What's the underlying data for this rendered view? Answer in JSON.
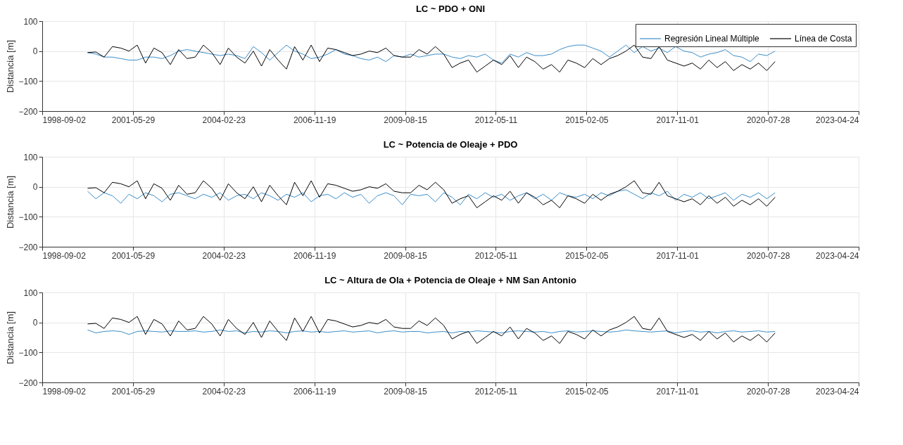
{
  "chart_data": [
    {
      "type": "line",
      "title": "LC ~ PDO + ONI",
      "ylabel": "Distancia [m]",
      "xlim": [
        "1998-09-02",
        "2023-04-24"
      ],
      "xticks": [
        "1998-09-02",
        "2001-05-29",
        "2004-02-23",
        "2006-11-19",
        "2009-08-15",
        "2012-05-11",
        "2015-02-05",
        "2017-11-01",
        "2020-07-28",
        "2023-04-24"
      ],
      "ylim": [
        -200,
        100
      ],
      "yticks": [
        -200,
        -100,
        0,
        100
      ],
      "grid": true,
      "legend": "top right",
      "x": [
        "2000-01-15",
        "2000-04-15",
        "2000-07-15",
        "2000-10-15",
        "2001-01-15",
        "2001-04-15",
        "2001-07-15",
        "2001-10-15",
        "2002-01-15",
        "2002-04-15",
        "2002-07-15",
        "2002-10-15",
        "2003-01-15",
        "2003-04-15",
        "2003-07-15",
        "2003-10-15",
        "2004-01-15",
        "2004-04-15",
        "2004-07-15",
        "2004-10-15",
        "2005-01-15",
        "2005-04-15",
        "2005-07-15",
        "2005-10-15",
        "2006-01-15",
        "2006-04-15",
        "2006-07-15",
        "2006-10-15",
        "2007-01-15",
        "2007-04-15",
        "2007-07-15",
        "2007-10-15",
        "2008-01-15",
        "2008-04-15",
        "2008-07-15",
        "2008-10-15",
        "2009-01-15",
        "2009-04-15",
        "2009-07-15",
        "2009-10-15",
        "2010-01-15",
        "2010-04-15",
        "2010-07-15",
        "2010-10-15",
        "2011-01-15",
        "2011-04-15",
        "2011-07-15",
        "2011-10-15",
        "2012-01-15",
        "2012-04-15",
        "2012-07-15",
        "2012-10-15",
        "2013-01-15",
        "2013-04-15",
        "2013-07-15",
        "2013-10-15",
        "2014-01-15",
        "2014-04-15",
        "2014-07-15",
        "2014-10-15",
        "2015-01-15",
        "2015-04-15",
        "2015-07-15",
        "2015-10-15",
        "2016-01-15",
        "2016-04-15",
        "2016-07-15",
        "2016-10-15",
        "2017-01-15",
        "2017-04-15",
        "2017-07-15",
        "2017-10-15",
        "2018-01-15",
        "2018-04-15",
        "2018-07-15",
        "2018-10-15",
        "2019-01-15",
        "2019-04-15",
        "2019-07-15",
        "2019-10-15",
        "2020-01-15",
        "2020-04-15",
        "2020-07-15",
        "2020-10-15"
      ],
      "series": [
        {
          "name": "Regresión Lineal Múltiple",
          "color": "#3a8dc9",
          "values": [
            -5,
            -10,
            -20,
            -20,
            -25,
            -30,
            -30,
            -20,
            -20,
            -25,
            -15,
            0,
            5,
            0,
            -5,
            -10,
            -15,
            -10,
            -15,
            -25,
            15,
            -5,
            -30,
            -5,
            20,
            0,
            -10,
            -25,
            -20,
            -10,
            5,
            -10,
            -15,
            -25,
            -30,
            -20,
            -35,
            -15,
            -20,
            -10,
            -20,
            -15,
            -10,
            -10,
            -20,
            -25,
            -15,
            -20,
            -10,
            -30,
            -40,
            -10,
            -20,
            -5,
            -15,
            -15,
            -10,
            5,
            15,
            20,
            20,
            10,
            0,
            -20,
            0,
            20,
            -5,
            15,
            0,
            10,
            -5,
            15,
            0,
            -5,
            -20,
            -10,
            -5,
            5,
            -15,
            -20,
            -35,
            -10,
            -15,
            0
          ]
        },
        {
          "name": "Línea de Costa",
          "color": "#000000",
          "values": [
            -5,
            -3,
            -20,
            15,
            10,
            0,
            20,
            -40,
            10,
            -5,
            -45,
            5,
            -25,
            -20,
            20,
            -5,
            -45,
            10,
            -20,
            -40,
            0,
            -50,
            5,
            -30,
            -60,
            15,
            -30,
            20,
            -35,
            10,
            5,
            -5,
            -15,
            -10,
            0,
            -5,
            10,
            -15,
            -20,
            -20,
            5,
            -10,
            15,
            -10,
            -55,
            -40,
            -30,
            -70,
            -50,
            -30,
            -45,
            -15,
            -55,
            -20,
            -35,
            -60,
            -45,
            -70,
            -30,
            -40,
            -55,
            -25,
            -45,
            -25,
            -15,
            0,
            20,
            -20,
            -25,
            15,
            -30,
            -40,
            -50,
            -40,
            -60,
            -30,
            -55,
            -35,
            -65,
            -45,
            -60,
            -40,
            -65,
            -35
          ]
        }
      ]
    },
    {
      "type": "line",
      "title": "LC ~ Potencia de Oleaje + PDO",
      "ylabel": "Distancia [m]",
      "xlim": [
        "1998-09-02",
        "2023-04-24"
      ],
      "xticks": [
        "1998-09-02",
        "2001-05-29",
        "2004-02-23",
        "2006-11-19",
        "2009-08-15",
        "2012-05-11",
        "2015-02-05",
        "2017-11-01",
        "2020-07-28",
        "2023-04-24"
      ],
      "ylim": [
        -200,
        100
      ],
      "yticks": [
        -200,
        -100,
        0,
        100
      ],
      "grid": true,
      "x": [
        "2000-01-15",
        "2000-04-15",
        "2000-07-15",
        "2000-10-15",
        "2001-01-15",
        "2001-04-15",
        "2001-07-15",
        "2001-10-15",
        "2002-01-15",
        "2002-04-15",
        "2002-07-15",
        "2002-10-15",
        "2003-01-15",
        "2003-04-15",
        "2003-07-15",
        "2003-10-15",
        "2004-01-15",
        "2004-04-15",
        "2004-07-15",
        "2004-10-15",
        "2005-01-15",
        "2005-04-15",
        "2005-07-15",
        "2005-10-15",
        "2006-01-15",
        "2006-04-15",
        "2006-07-15",
        "2006-10-15",
        "2007-01-15",
        "2007-04-15",
        "2007-07-15",
        "2007-10-15",
        "2008-01-15",
        "2008-04-15",
        "2008-07-15",
        "2008-10-15",
        "2009-01-15",
        "2009-04-15",
        "2009-07-15",
        "2009-10-15",
        "2010-01-15",
        "2010-04-15",
        "2010-07-15",
        "2010-10-15",
        "2011-01-15",
        "2011-04-15",
        "2011-07-15",
        "2011-10-15",
        "2012-01-15",
        "2012-04-15",
        "2012-07-15",
        "2012-10-15",
        "2013-01-15",
        "2013-04-15",
        "2013-07-15",
        "2013-10-15",
        "2014-01-15",
        "2014-04-15",
        "2014-07-15",
        "2014-10-15",
        "2015-01-15",
        "2015-04-15",
        "2015-07-15",
        "2015-10-15",
        "2016-01-15",
        "2016-04-15",
        "2016-07-15",
        "2016-10-15",
        "2017-01-15",
        "2017-04-15",
        "2017-07-15",
        "2017-10-15",
        "2018-01-15",
        "2018-04-15",
        "2018-07-15",
        "2018-10-15",
        "2019-01-15",
        "2019-04-15",
        "2019-07-15",
        "2019-10-15",
        "2020-01-15",
        "2020-04-15",
        "2020-07-15",
        "2020-10-15"
      ],
      "series": [
        {
          "color": "#3a8dc9",
          "values": [
            -15,
            -40,
            -20,
            -30,
            -55,
            -25,
            -40,
            -20,
            -30,
            -50,
            -25,
            -20,
            -30,
            -40,
            -25,
            -35,
            -20,
            -45,
            -30,
            -25,
            -40,
            -20,
            -30,
            -45,
            -25,
            -35,
            -20,
            -50,
            -30,
            -25,
            -40,
            -20,
            -35,
            -25,
            -55,
            -30,
            -20,
            -30,
            -60,
            -25,
            -30,
            -25,
            -50,
            -20,
            -35,
            -60,
            -25,
            -40,
            -20,
            -35,
            -25,
            -45,
            -30,
            -20,
            -40,
            -25,
            -45,
            -20,
            -30,
            -35,
            -25,
            -40,
            -20,
            -30,
            -15,
            -10,
            -25,
            -40,
            -20,
            -30,
            -15,
            -45,
            -25,
            -35,
            -20,
            -40,
            -30,
            -20,
            -45,
            -25,
            -35,
            -20,
            -40,
            -20
          ]
        },
        {
          "color": "#000000",
          "values": [
            -5,
            -3,
            -20,
            15,
            10,
            0,
            20,
            -40,
            10,
            -5,
            -45,
            5,
            -25,
            -20,
            20,
            -5,
            -45,
            10,
            -20,
            -40,
            0,
            -50,
            5,
            -30,
            -60,
            15,
            -30,
            20,
            -35,
            10,
            5,
            -5,
            -15,
            -10,
            0,
            -5,
            10,
            -15,
            -20,
            -20,
            5,
            -10,
            15,
            -10,
            -55,
            -40,
            -30,
            -70,
            -50,
            -30,
            -45,
            -15,
            -55,
            -20,
            -35,
            -60,
            -45,
            -70,
            -30,
            -40,
            -55,
            -25,
            -45,
            -25,
            -15,
            0,
            20,
            -20,
            -25,
            15,
            -30,
            -40,
            -50,
            -40,
            -60,
            -30,
            -55,
            -35,
            -65,
            -45,
            -60,
            -40,
            -65,
            -35
          ]
        }
      ]
    },
    {
      "type": "line",
      "title": "LC ~ Altura de Ola + Potencia de Oleaje + NM San Antonio",
      "ylabel": "Distancia [m]",
      "xlim": [
        "1998-09-02",
        "2023-04-24"
      ],
      "xticks": [
        "1998-09-02",
        "2001-05-29",
        "2004-02-23",
        "2006-11-19",
        "2009-08-15",
        "2012-05-11",
        "2015-02-05",
        "2017-11-01",
        "2020-07-28",
        "2023-04-24"
      ],
      "ylim": [
        -200,
        100
      ],
      "yticks": [
        -200,
        -100,
        0,
        100
      ],
      "grid": true,
      "x": [
        "2000-01-15",
        "2000-04-15",
        "2000-07-15",
        "2000-10-15",
        "2001-01-15",
        "2001-04-15",
        "2001-07-15",
        "2001-10-15",
        "2002-01-15",
        "2002-04-15",
        "2002-07-15",
        "2002-10-15",
        "2003-01-15",
        "2003-04-15",
        "2003-07-15",
        "2003-10-15",
        "2004-01-15",
        "2004-04-15",
        "2004-07-15",
        "2004-10-15",
        "2005-01-15",
        "2005-04-15",
        "2005-07-15",
        "2005-10-15",
        "2006-01-15",
        "2006-04-15",
        "2006-07-15",
        "2006-10-15",
        "2007-01-15",
        "2007-04-15",
        "2007-07-15",
        "2007-10-15",
        "2008-01-15",
        "2008-04-15",
        "2008-07-15",
        "2008-10-15",
        "2009-01-15",
        "2009-04-15",
        "2009-07-15",
        "2009-10-15",
        "2010-01-15",
        "2010-04-15",
        "2010-07-15",
        "2010-10-15",
        "2011-01-15",
        "2011-04-15",
        "2011-07-15",
        "2011-10-15",
        "2012-01-15",
        "2012-04-15",
        "2012-07-15",
        "2012-10-15",
        "2013-01-15",
        "2013-04-15",
        "2013-07-15",
        "2013-10-15",
        "2014-01-15",
        "2014-04-15",
        "2014-07-15",
        "2014-10-15",
        "2015-01-15",
        "2015-04-15",
        "2015-07-15",
        "2015-10-15",
        "2016-01-15",
        "2016-04-15",
        "2016-07-15",
        "2016-10-15",
        "2017-01-15",
        "2017-04-15",
        "2017-07-15",
        "2017-10-15",
        "2018-01-15",
        "2018-04-15",
        "2018-07-15",
        "2018-10-15",
        "2019-01-15",
        "2019-04-15",
        "2019-07-15",
        "2019-10-15",
        "2020-01-15",
        "2020-04-15",
        "2020-07-15",
        "2020-10-15"
      ],
      "series": [
        {
          "color": "#3a8dc9",
          "values": [
            -25,
            -35,
            -30,
            -28,
            -30,
            -40,
            -30,
            -28,
            -30,
            -32,
            -28,
            -30,
            -30,
            -28,
            -32,
            -30,
            -25,
            -30,
            -28,
            -35,
            -30,
            -32,
            -28,
            -30,
            -35,
            -30,
            -28,
            -32,
            -30,
            -33,
            -30,
            -28,
            -32,
            -30,
            -28,
            -35,
            -30,
            -28,
            -32,
            -30,
            -30,
            -35,
            -32,
            -30,
            -35,
            -30,
            -32,
            -28,
            -30,
            -32,
            -35,
            -30,
            -28,
            -30,
            -32,
            -30,
            -35,
            -30,
            -28,
            -32,
            -30,
            -28,
            -30,
            -32,
            -30,
            -25,
            -28,
            -30,
            -32,
            -30,
            -28,
            -35,
            -30,
            -28,
            -32,
            -30,
            -35,
            -30,
            -28,
            -32,
            -30,
            -28,
            -32,
            -30
          ]
        },
        {
          "color": "#000000",
          "values": [
            -5,
            -3,
            -20,
            15,
            10,
            0,
            20,
            -40,
            10,
            -5,
            -45,
            5,
            -25,
            -20,
            20,
            -5,
            -45,
            10,
            -20,
            -40,
            0,
            -50,
            5,
            -30,
            -60,
            15,
            -30,
            20,
            -35,
            10,
            5,
            -5,
            -15,
            -10,
            0,
            -5,
            10,
            -15,
            -20,
            -20,
            5,
            -10,
            15,
            -10,
            -55,
            -40,
            -30,
            -70,
            -50,
            -30,
            -45,
            -15,
            -55,
            -20,
            -35,
            -60,
            -45,
            -70,
            -30,
            -40,
            -55,
            -25,
            -45,
            -25,
            -15,
            0,
            20,
            -20,
            -25,
            15,
            -30,
            -40,
            -50,
            -40,
            -60,
            -30,
            -55,
            -35,
            -65,
            -45,
            -60,
            -40,
            -65,
            -35
          ]
        }
      ]
    }
  ]
}
